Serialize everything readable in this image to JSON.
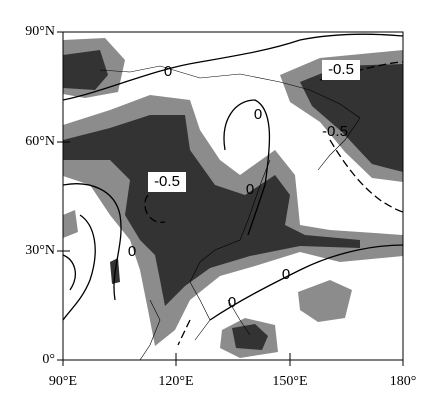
{
  "map": {
    "y_labels": [
      "90°N",
      "60°N",
      "30°N",
      "0°"
    ],
    "x_labels": [
      "90°E",
      "120°E",
      "150°E",
      "180°"
    ],
    "contour_labels": [
      "-0.5",
      "0",
      "0",
      "-0.5",
      "-0.5",
      "0",
      "0",
      "0",
      "0"
    ]
  }
}
